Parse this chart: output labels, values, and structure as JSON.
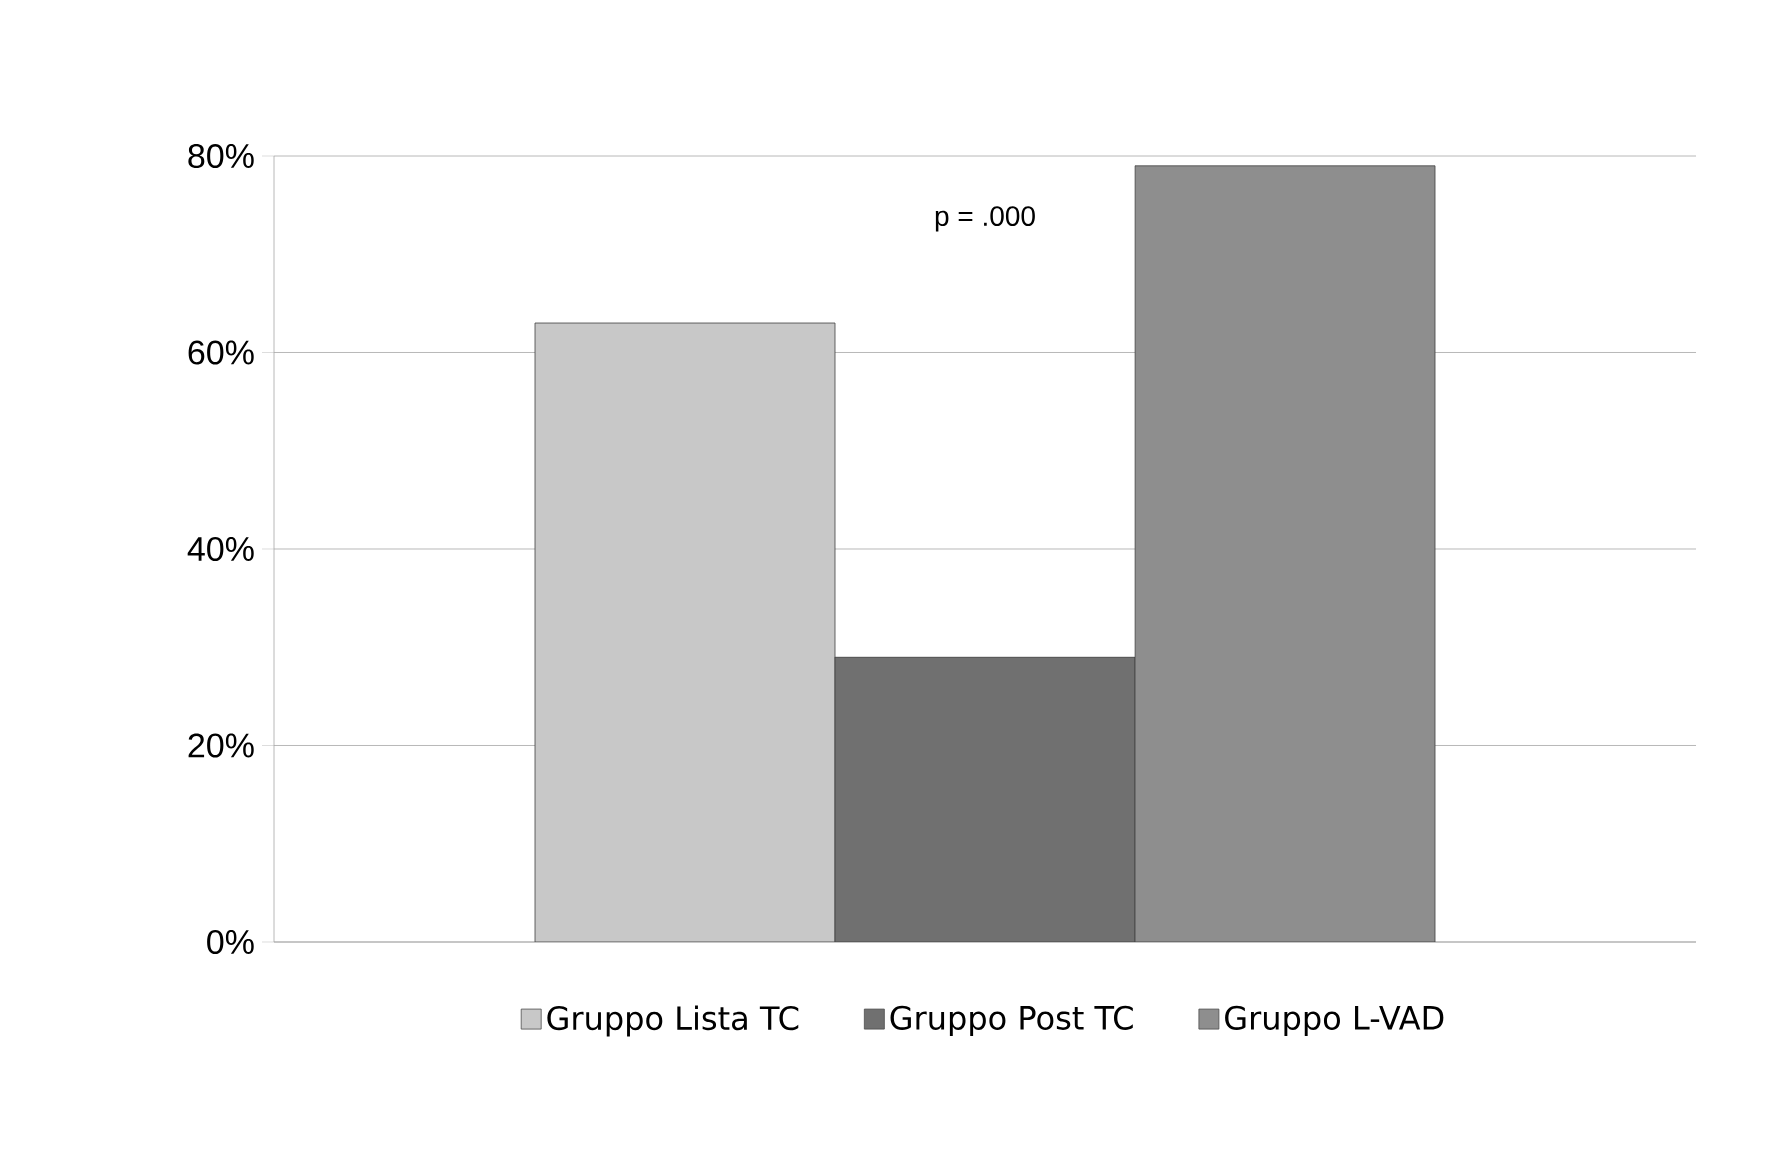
{
  "chart_data": {
    "type": "bar",
    "categories": [
      null
    ],
    "series": [
      {
        "name": "Gruppo Lista TC",
        "color": "#c8c8c8",
        "values": [
          63
        ]
      },
      {
        "name": "Gruppo Post TC",
        "color": "#707070",
        "values": [
          29
        ]
      },
      {
        "name": "Gruppo L-VAD",
        "color": "#8e8e8e",
        "values": [
          79
        ]
      }
    ],
    "ylim": [
      0,
      80
    ],
    "yticks": [
      {
        "value": 0,
        "label": "0%"
      },
      {
        "value": 20,
        "label": "20%"
      },
      {
        "value": 40,
        "label": "40%"
      },
      {
        "value": 60,
        "label": "60%"
      },
      {
        "value": 80,
        "label": "80%"
      }
    ],
    "annotations": [
      "p = .000"
    ],
    "grid": "y",
    "legend": "bottom"
  }
}
